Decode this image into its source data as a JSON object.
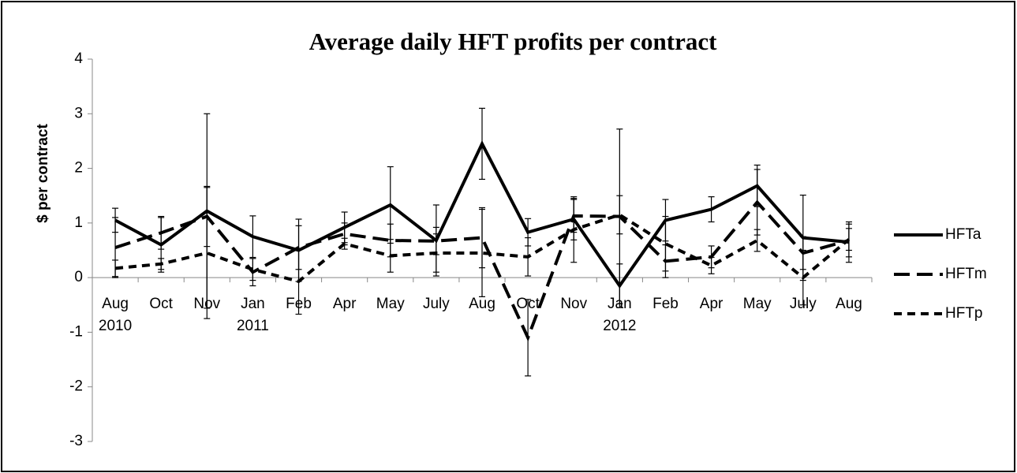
{
  "chart_data": {
    "type": "line",
    "title": "Average daily HFT profits per contract",
    "ylabel": "$ per contract",
    "categories": [
      "Aug\n2010",
      "Oct",
      "Nov",
      "Jan\n2011",
      "Feb",
      "Apr",
      "May",
      "July",
      "Aug",
      "Oct",
      "Nov",
      "Jan\n2012",
      "Feb",
      "Apr",
      "May",
      "July",
      "Aug"
    ],
    "series": [
      {
        "name": "HFTa",
        "color": "#000000",
        "dash": "solid",
        "values": [
          1.05,
          0.6,
          1.22,
          0.75,
          0.5,
          0.92,
          1.33,
          0.68,
          2.45,
          0.83,
          1.07,
          -0.15,
          1.05,
          1.25,
          1.68,
          0.73,
          0.65
        ],
        "errors": [
          0.22,
          0.5,
          1.78,
          0.38,
          0.57,
          0.28,
          0.7,
          0.65,
          0.65,
          0.25,
          0.38,
          0.4,
          0.38,
          0.23,
          0.38,
          0.78,
          0.37
        ]
      },
      {
        "name": "HFTm",
        "color": "#000000",
        "dash": "long",
        "values": [
          0.55,
          0.82,
          1.12,
          0.1,
          0.55,
          0.8,
          0.68,
          0.67,
          0.73,
          -1.1,
          1.13,
          1.12,
          0.3,
          0.38,
          1.38,
          0.45,
          0.68
        ],
        "errors": [
          0.55,
          0.3,
          0.55,
          0.25,
          0.4,
          0.2,
          0.3,
          0.25,
          0.55,
          0.7,
          0.3,
          1.6,
          0.3,
          0.2,
          0.6,
          0.3,
          0.3
        ]
      },
      {
        "name": "HFTp",
        "color": "#000000",
        "dash": "short",
        "values": [
          0.17,
          0.25,
          0.45,
          0.15,
          -0.07,
          0.62,
          0.4,
          0.45,
          0.45,
          0.38,
          0.88,
          1.15,
          0.62,
          0.22,
          0.68,
          0.0,
          0.7
        ],
        "errors": [
          0.15,
          0.1,
          1.2,
          0.2,
          0.6,
          0.1,
          0.3,
          0.35,
          0.8,
          0.35,
          0.6,
          0.35,
          0.5,
          0.15,
          0.2,
          0.5,
          0.2
        ]
      }
    ],
    "ylim": [
      -3,
      4
    ],
    "yticks": [
      -3,
      -2,
      -1,
      0,
      1,
      2,
      3,
      4
    ],
    "grid": false,
    "legend": "right"
  }
}
